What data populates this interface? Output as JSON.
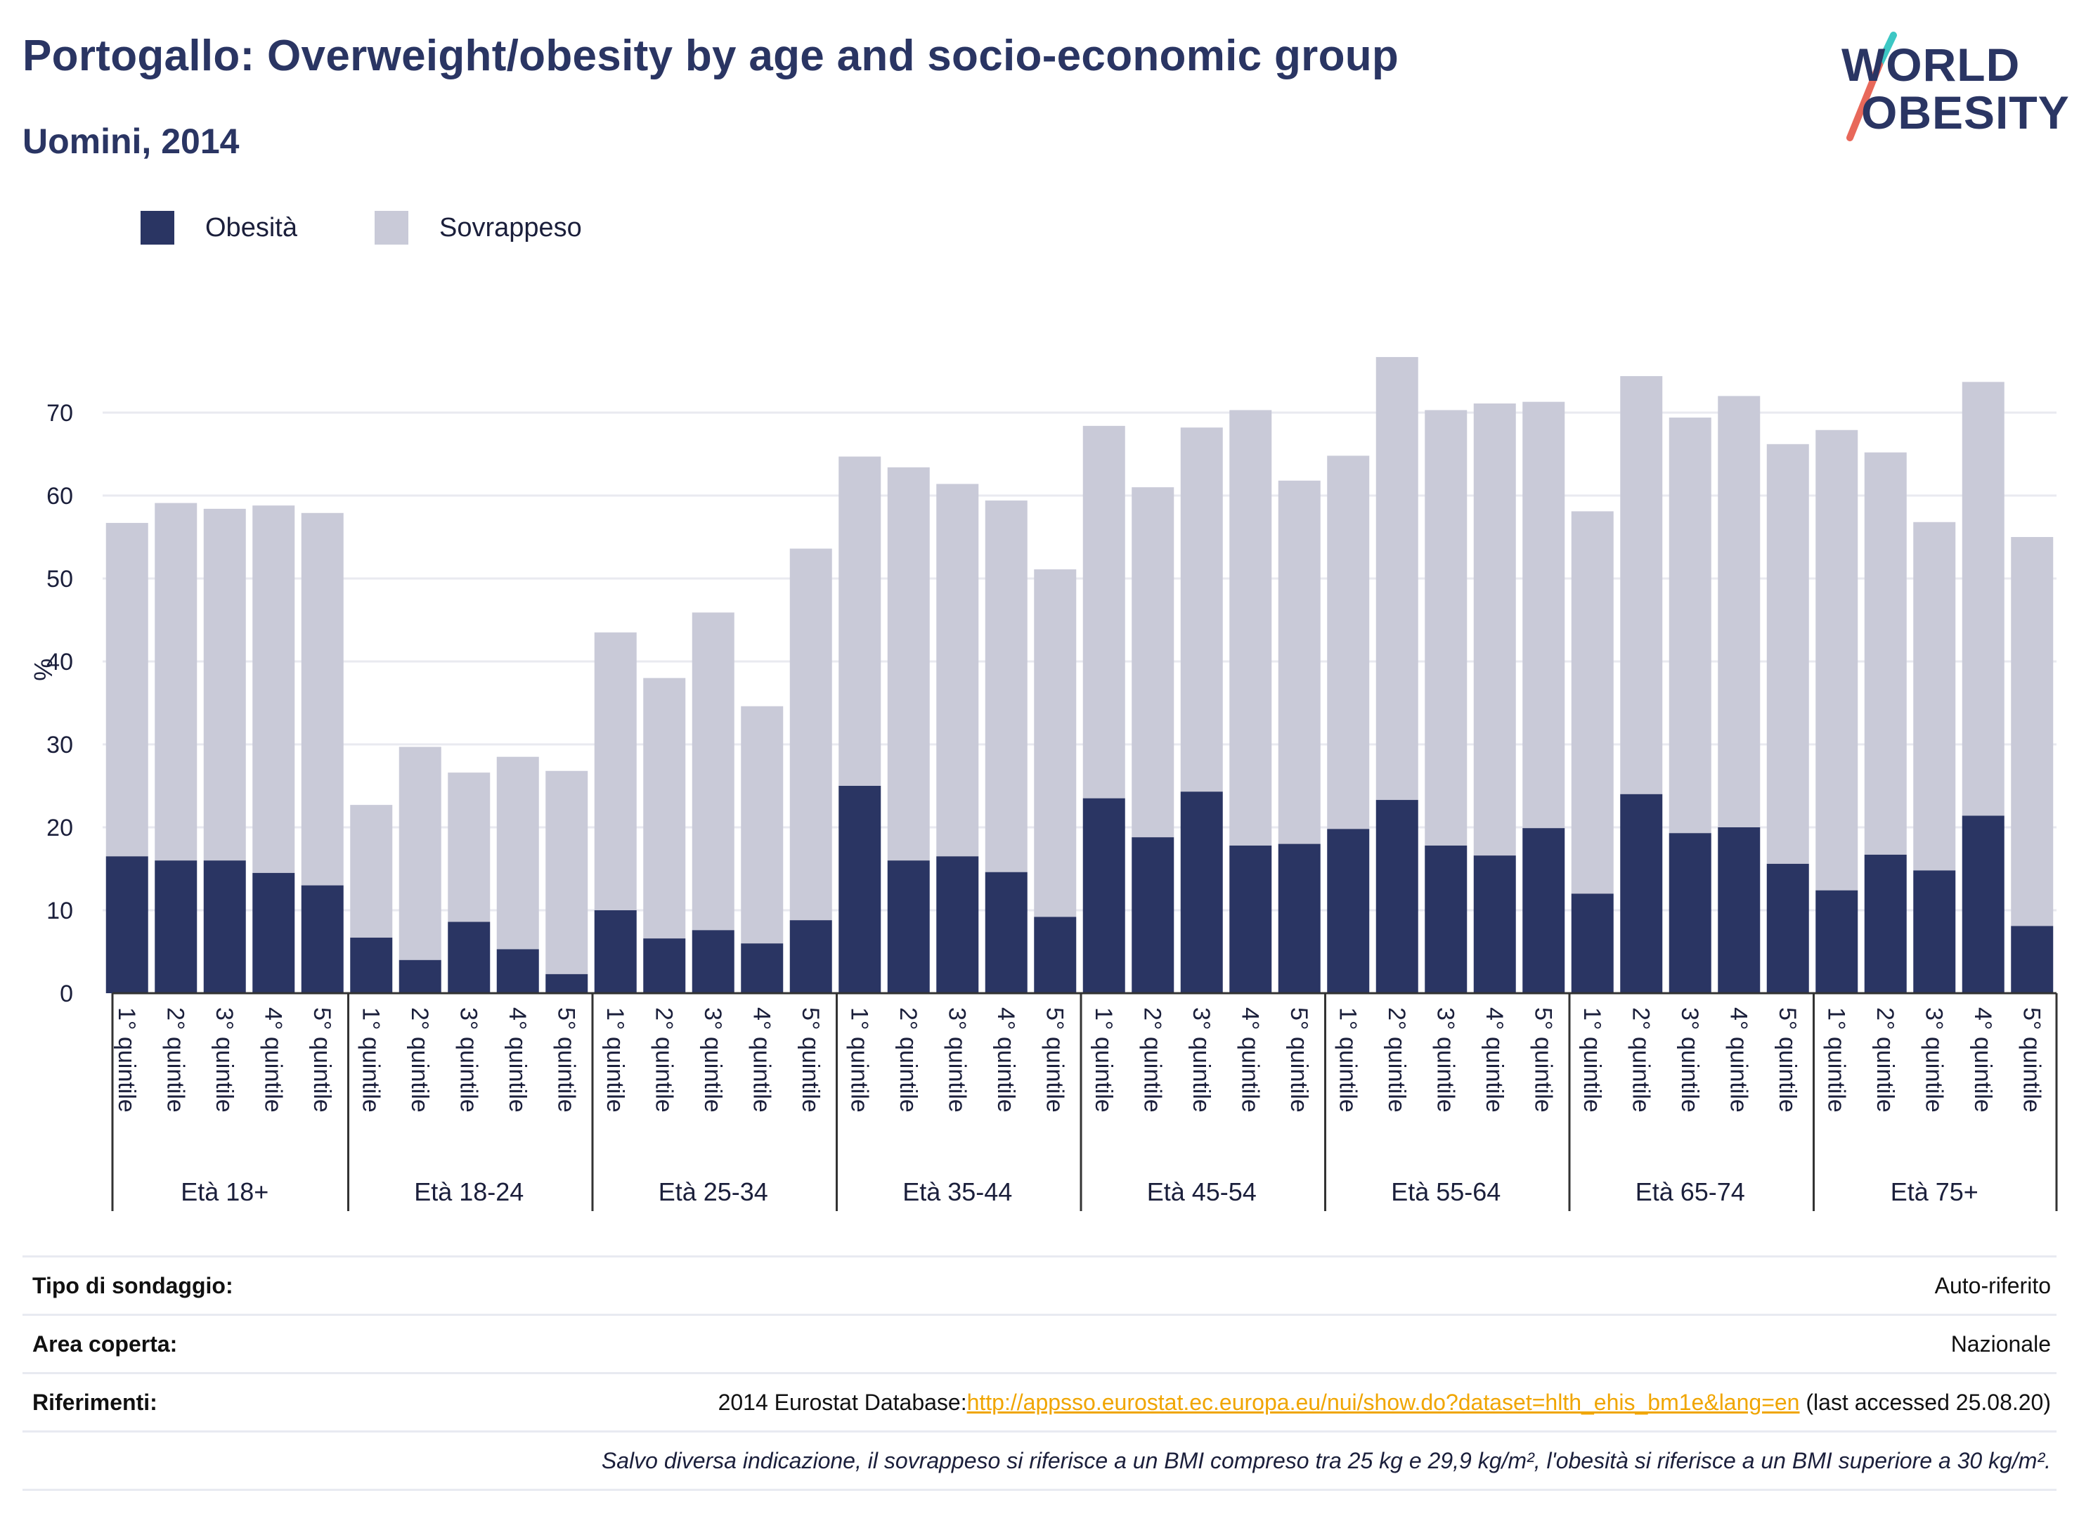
{
  "header": {
    "title": "Portogallo: Overweight/obesity by age and socio-economic group",
    "subtitle": "Uomini, 2014"
  },
  "logo": {
    "line1": "WORLD",
    "line2": "OBESITY",
    "colors": {
      "text": "#2a3563",
      "slash_top": "#3cc7c4",
      "slash_bottom": "#e8685a"
    }
  },
  "legend": {
    "items": [
      {
        "label": "Obesità",
        "color": "#2a3563"
      },
      {
        "label": "Sovrappeso",
        "color": "#c9cad8"
      }
    ]
  },
  "chart_data": {
    "type": "bar",
    "stacked": true,
    "ylabel": "%",
    "ylim": [
      0,
      78
    ],
    "yticks": [
      0,
      10,
      20,
      30,
      40,
      50,
      60,
      70
    ],
    "grid": true,
    "legend_position": "top-left",
    "groups": [
      "Età 18+",
      "Età 18-24",
      "Età 25-34",
      "Età 35-44",
      "Età 45-54",
      "Età 55-64",
      "Età 65-74",
      "Età 75+"
    ],
    "categories": [
      "1° quintile",
      "2° quintile",
      "3° quintile",
      "4° quintile",
      "5° quintile"
    ],
    "series": [
      {
        "name": "Obesità",
        "color": "#2a3563",
        "values": [
          [
            16.5,
            16.0,
            16.0,
            14.5,
            13.0
          ],
          [
            6.7,
            4.0,
            8.6,
            5.3,
            2.3
          ],
          [
            10.0,
            6.6,
            7.6,
            6.0,
            8.8
          ],
          [
            25.0,
            16.0,
            16.5,
            14.6,
            9.2
          ],
          [
            23.5,
            18.8,
            24.3,
            17.8,
            18.0
          ],
          [
            19.8,
            23.3,
            17.8,
            16.6,
            19.9
          ],
          [
            12.0,
            24.0,
            19.3,
            20.0,
            15.6
          ],
          [
            12.4,
            16.7,
            14.8,
            21.4,
            8.1
          ]
        ]
      },
      {
        "name": "Sovrappeso",
        "color": "#c9cad8",
        "values": [
          [
            40.2,
            43.1,
            42.4,
            44.3,
            44.9
          ],
          [
            16.0,
            25.7,
            18.0,
            23.2,
            24.5
          ],
          [
            33.5,
            31.4,
            38.3,
            28.6,
            44.8
          ],
          [
            39.7,
            47.4,
            44.9,
            44.8,
            41.9
          ],
          [
            44.9,
            42.2,
            43.9,
            52.5,
            43.8
          ],
          [
            45.0,
            53.4,
            52.5,
            54.5,
            51.4
          ],
          [
            46.1,
            50.4,
            50.1,
            52.0,
            50.6
          ],
          [
            55.5,
            48.5,
            42.0,
            52.3,
            46.9
          ]
        ]
      }
    ]
  },
  "info": {
    "survey_label": "Tipo di sondaggio:",
    "survey_value": "Auto-riferito",
    "area_label": "Area coperta:",
    "area_value": "Nazionale",
    "refs_label": "Riferimenti:",
    "refs_prefix": "2014 Eurostat Database:",
    "refs_link": "http://appsso.eurostat.ec.europa.eu/nui/show.do?dataset=hlth_ehis_bm1e&lang=en",
    "refs_suffix": " (last accessed 25.08.20)",
    "note": "Salvo diversa indicazione, il sovrappeso si riferisce a un BMI compreso tra 25 kg e 29,9 kg/m², l'obesità si riferisce a un BMI superiore a 30 kg/m²."
  }
}
